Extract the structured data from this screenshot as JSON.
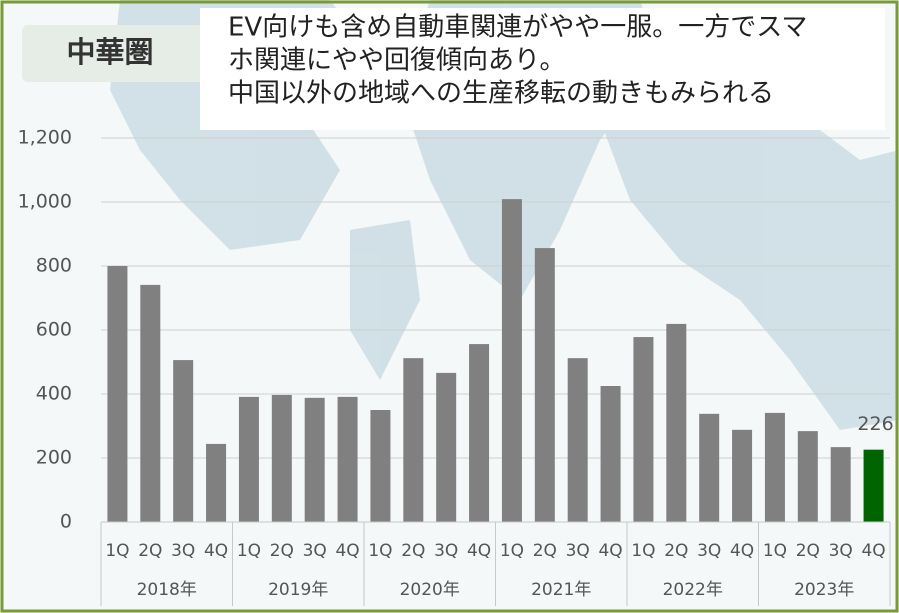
{
  "chart_data": {
    "type": "bar",
    "title": "中華圏",
    "annotation_lines": [
      "EV向けも含め自動車関連がやや一服。一方でスマ",
      "ホ関連にやや回復傾向あり。",
      "中国以外の地域への生産移転の動きもみられる"
    ],
    "categories": [
      "1Q",
      "2Q",
      "3Q",
      "4Q",
      "1Q",
      "2Q",
      "3Q",
      "4Q",
      "1Q",
      "2Q",
      "3Q",
      "4Q",
      "1Q",
      "2Q",
      "3Q",
      "4Q",
      "1Q",
      "2Q",
      "3Q",
      "4Q",
      "1Q",
      "2Q",
      "3Q",
      "4Q"
    ],
    "groups": [
      "2018年",
      "2019年",
      "2020年",
      "2021年",
      "2022年",
      "2023年"
    ],
    "values": [
      800,
      741,
      506,
      244,
      391,
      397,
      388,
      391,
      350,
      512,
      466,
      556,
      1009,
      856,
      512,
      425,
      578,
      619,
      338,
      288,
      341,
      284,
      234,
      226
    ],
    "value_labels": [
      null,
      null,
      null,
      null,
      null,
      null,
      null,
      null,
      null,
      null,
      null,
      null,
      null,
      null,
      null,
      null,
      null,
      null,
      null,
      null,
      null,
      null,
      null,
      "226"
    ],
    "colors": [
      "#808080",
      "#808080",
      "#808080",
      "#808080",
      "#808080",
      "#808080",
      "#808080",
      "#808080",
      "#808080",
      "#808080",
      "#808080",
      "#808080",
      "#808080",
      "#808080",
      "#808080",
      "#808080",
      "#808080",
      "#808080",
      "#808080",
      "#808080",
      "#808080",
      "#808080",
      "#808080",
      "#006400"
    ],
    "ylim": [
      0,
      1200
    ],
    "yticks": [
      0,
      200,
      400,
      600,
      800,
      {
        "value": 1000,
        "label": "1,000"
      },
      {
        "value": 1200,
        "label": "1,200"
      }
    ],
    "grid": true
  }
}
